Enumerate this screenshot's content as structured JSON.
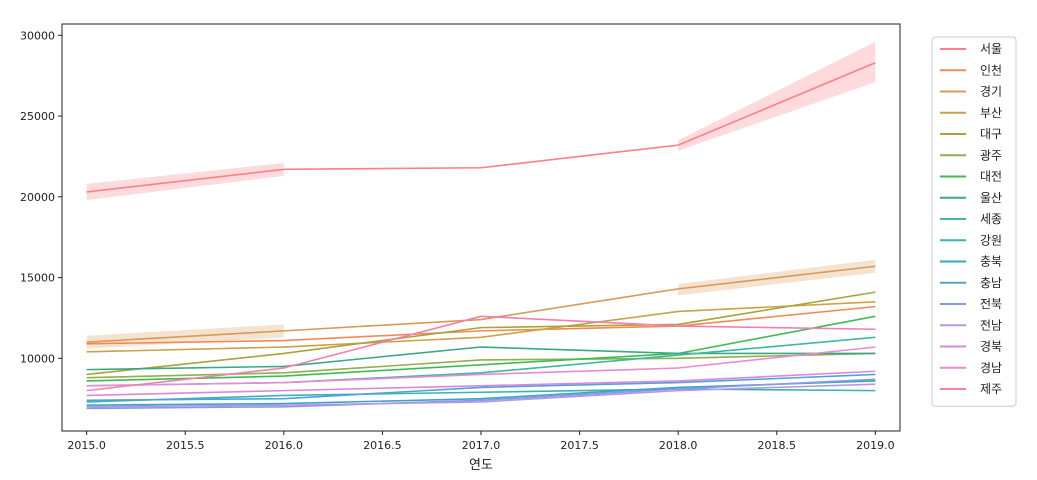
{
  "chart_data": {
    "type": "line",
    "xlabel": "연도",
    "ylabel": "",
    "xlim": [
      2014.875,
      2019.125
    ],
    "ylim": [
      5500,
      30700
    ],
    "x_ticks": [
      2015.0,
      2015.5,
      2016.0,
      2016.5,
      2017.0,
      2017.5,
      2018.0,
      2018.5,
      2019.0
    ],
    "x_tick_labels": [
      "2015.0",
      "2015.5",
      "2016.0",
      "2016.5",
      "2017.0",
      "2017.5",
      "2018.0",
      "2018.5",
      "2019.0"
    ],
    "y_ticks": [
      10000,
      15000,
      20000,
      25000,
      30000
    ],
    "y_tick_labels": [
      "10000",
      "15000",
      "20000",
      "25000",
      "30000"
    ],
    "grid": false,
    "legend_position": "right",
    "x": [
      2015,
      2016,
      2017,
      2018,
      2019
    ],
    "series": [
      {
        "name": "서울",
        "color": "#ff7f86",
        "values": [
          20300,
          21700,
          21800,
          23200,
          28300
        ],
        "ci_low": [
          19800,
          21300,
          null,
          22850,
          27100
        ],
        "ci_high": [
          20800,
          22100,
          null,
          23500,
          29600
        ]
      },
      {
        "name": "인천",
        "color": "#f08a55",
        "values": [
          10900,
          11100,
          11700,
          12000,
          13200
        ],
        "ci_low": [
          null,
          null,
          null,
          null,
          null
        ],
        "ci_high": [
          null,
          null,
          null,
          null,
          null
        ]
      },
      {
        "name": "경기",
        "color": "#d99a55",
        "values": [
          11000,
          11700,
          12400,
          14300,
          15700
        ],
        "ci_low": [
          10600,
          11300,
          null,
          13900,
          15300
        ],
        "ci_high": [
          11400,
          12100,
          null,
          14600,
          16100
        ]
      },
      {
        "name": "부산",
        "color": "#c9a24a",
        "values": [
          10400,
          10700,
          11300,
          12900,
          13500
        ],
        "ci_low": [
          null,
          null,
          null,
          null,
          null
        ],
        "ci_high": [
          null,
          null,
          null,
          null,
          null
        ]
      },
      {
        "name": "대구",
        "color": "#a9a33a",
        "values": [
          9000,
          10300,
          11900,
          12100,
          14100
        ],
        "ci_low": [
          null,
          null,
          null,
          null,
          null
        ],
        "ci_high": [
          null,
          null,
          null,
          null,
          null
        ]
      },
      {
        "name": "광주",
        "color": "#8fb04a",
        "values": [
          8800,
          9100,
          9900,
          10000,
          10300
        ],
        "ci_low": [
          null,
          null,
          null,
          null,
          null
        ],
        "ci_high": [
          null,
          null,
          null,
          null,
          null
        ]
      },
      {
        "name": "대전",
        "color": "#3fba55",
        "values": [
          8600,
          8900,
          9600,
          10300,
          12600
        ],
        "ci_low": [
          null,
          null,
          null,
          null,
          null
        ],
        "ci_high": [
          null,
          null,
          null,
          null,
          null
        ]
      },
      {
        "name": "울산",
        "color": "#3aa882",
        "values": [
          9300,
          9500,
          10700,
          10300,
          10300
        ],
        "ci_low": [
          null,
          null,
          null,
          null,
          null
        ],
        "ci_high": [
          null,
          null,
          null,
          null,
          null
        ]
      },
      {
        "name": "세종",
        "color": "#3fb8a0",
        "values": [
          8300,
          8500,
          9100,
          10200,
          11300
        ],
        "ci_low": [
          null,
          null,
          null,
          null,
          null
        ],
        "ci_high": [
          null,
          null,
          null,
          null,
          null
        ]
      },
      {
        "name": "강원",
        "color": "#39b3b3",
        "values": [
          7300,
          7700,
          7900,
          8100,
          8000
        ],
        "ci_low": [
          null,
          null,
          null,
          null,
          null
        ],
        "ci_high": [
          null,
          null,
          null,
          null,
          null
        ]
      },
      {
        "name": "충북",
        "color": "#3aa6c0",
        "values": [
          7100,
          7200,
          7500,
          8200,
          8600
        ],
        "ci_low": [
          null,
          null,
          null,
          null,
          null
        ],
        "ci_high": [
          null,
          null,
          null,
          null,
          null
        ]
      },
      {
        "name": "충남",
        "color": "#4fa3d6",
        "values": [
          7400,
          7500,
          8200,
          8500,
          9000
        ],
        "ci_low": [
          null,
          null,
          null,
          null,
          null
        ],
        "ci_high": [
          null,
          null,
          null,
          null,
          null
        ]
      },
      {
        "name": "전북",
        "color": "#8899e6",
        "values": [
          6900,
          7000,
          7400,
          8100,
          8700
        ],
        "ci_low": [
          null,
          null,
          null,
          null,
          null
        ],
        "ci_high": [
          null,
          null,
          null,
          null,
          null
        ]
      },
      {
        "name": "전남",
        "color": "#b497ea",
        "values": [
          7000,
          7100,
          7300,
          8000,
          8400
        ],
        "ci_low": [
          null,
          null,
          null,
          null,
          null
        ],
        "ci_high": [
          null,
          null,
          null,
          null,
          null
        ]
      },
      {
        "name": "경북",
        "color": "#dd86e0",
        "values": [
          7700,
          8000,
          8300,
          8600,
          9200
        ],
        "ci_low": [
          null,
          null,
          null,
          null,
          null
        ],
        "ci_high": [
          null,
          null,
          null,
          null,
          null
        ]
      },
      {
        "name": "경남",
        "color": "#e98ad6",
        "values": [
          8300,
          8500,
          9000,
          9400,
          10700
        ],
        "ci_low": [
          null,
          null,
          null,
          null,
          null
        ],
        "ci_high": [
          null,
          null,
          null,
          null,
          null
        ]
      },
      {
        "name": "제주",
        "color": "#f27fb0",
        "values": [
          8000,
          9400,
          12600,
          12000,
          11800
        ],
        "ci_low": [
          null,
          null,
          null,
          null,
          null
        ],
        "ci_high": [
          null,
          null,
          null,
          null,
          null
        ]
      }
    ]
  }
}
